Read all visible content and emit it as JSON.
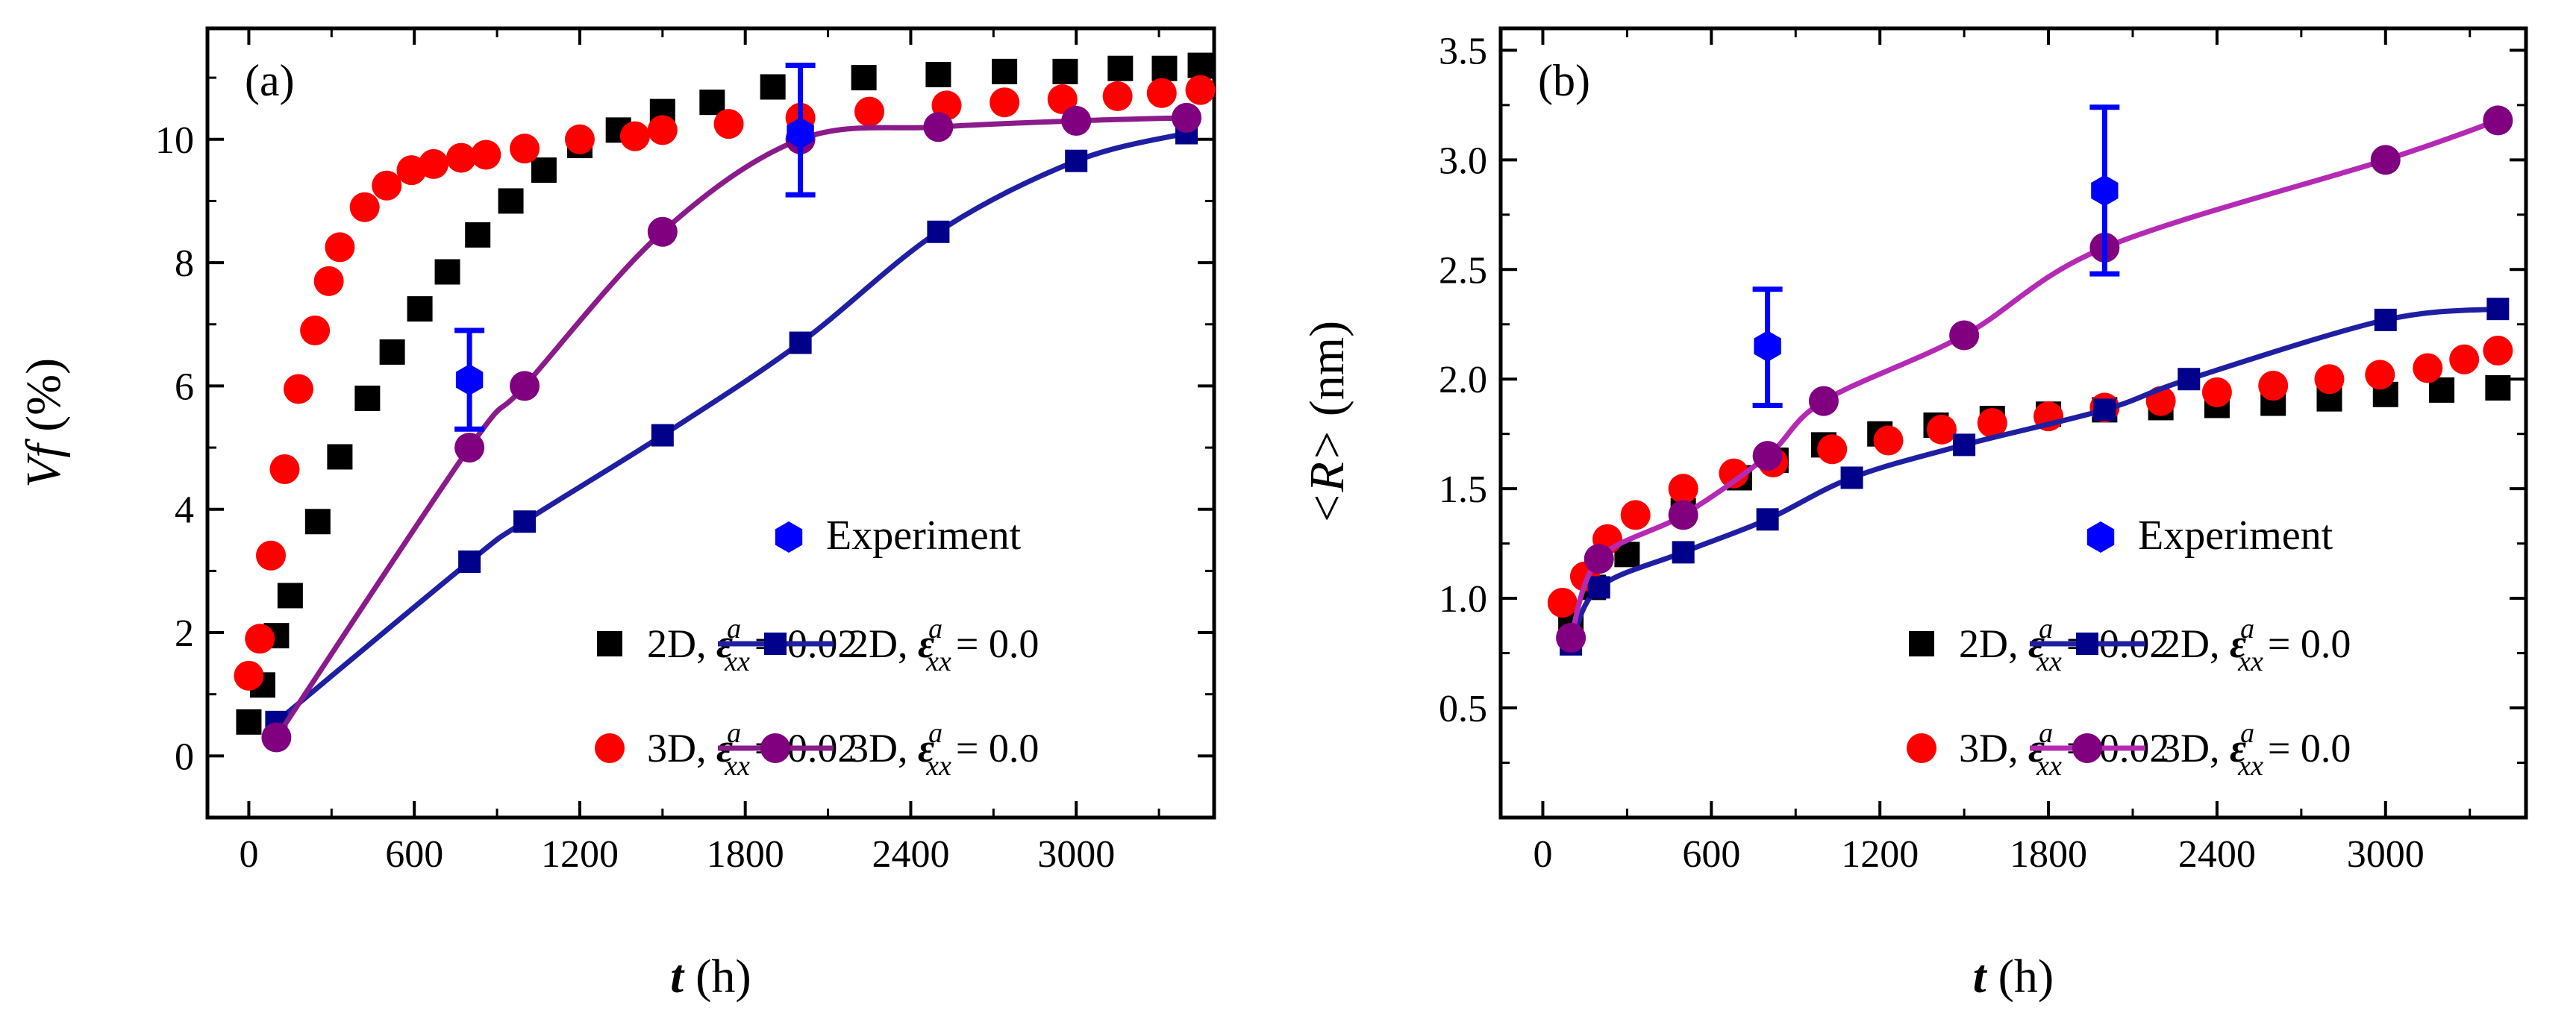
{
  "chart_data": [
    {
      "type": "scatter",
      "panel_label": "(a)",
      "xlabel": "t",
      "xlabel_unit": "(h)",
      "ylabel": "Vf",
      "ylabel_unit": "(%)",
      "xlim": [
        -150,
        3500
      ],
      "ylim": [
        -1,
        11.8
      ],
      "xticks": [
        0,
        600,
        1200,
        1800,
        2400,
        3000
      ],
      "yticks": [
        0,
        2,
        4,
        6,
        8,
        10
      ],
      "legend_position": "bottom-right",
      "legend": {
        "experiment": "Experiment",
        "s2d002": {
          "prefix": "2D, ",
          "sup": "a",
          "sub": "xx",
          "value": "= 0.02"
        },
        "s2d00": {
          "prefix": "2D, ",
          "sup": "a",
          "sub": "xx",
          "value": "= 0.0"
        },
        "s3d002": {
          "prefix": "3D, ",
          "sup": "a",
          "sub": "xx",
          "value": "= 0.02"
        },
        "s3d00": {
          "prefix": "3D, ",
          "sup": "a",
          "sub": "xx",
          "value": "= 0.0"
        }
      },
      "series": [
        {
          "key": "s2d002",
          "name": "2D, ε^a_xx = 0.02",
          "style": "square",
          "color": "#000000",
          "x": [
            0,
            50,
            100,
            150,
            250,
            330,
            430,
            520,
            620,
            720,
            830,
            950,
            1070,
            1200,
            1340,
            1500,
            1680,
            1900,
            2230,
            2500,
            2740,
            2960,
            3160,
            3320,
            3450
          ],
          "y": [
            0.55,
            1.15,
            1.95,
            2.6,
            3.8,
            4.85,
            5.8,
            6.55,
            7.25,
            7.85,
            8.45,
            9.0,
            9.5,
            9.9,
            10.15,
            10.45,
            10.6,
            10.85,
            11.0,
            11.05,
            11.1,
            11.1,
            11.15,
            11.15,
            11.2
          ]
        },
        {
          "key": "s3d002",
          "name": "3D, ε^a_xx = 0.02",
          "style": "circle",
          "color": "#ff0000",
          "x": [
            0,
            40,
            80,
            130,
            180,
            240,
            290,
            330,
            420,
            500,
            590,
            670,
            770,
            860,
            1000,
            1200,
            1400,
            1500,
            1740,
            2000,
            2250,
            2530,
            2740,
            2950,
            3150,
            3310,
            3450
          ],
          "y": [
            1.3,
            1.9,
            3.25,
            4.65,
            5.95,
            6.9,
            7.7,
            8.25,
            8.9,
            9.25,
            9.5,
            9.6,
            9.7,
            9.75,
            9.85,
            10.0,
            10.05,
            10.15,
            10.25,
            10.35,
            10.45,
            10.55,
            10.6,
            10.65,
            10.7,
            10.75,
            10.8
          ]
        },
        {
          "key": "s2d00",
          "name": "2D, ε^a_xx = 0.0",
          "style": "line-square",
          "color": "#00008b",
          "line_color": "#1f1fa3",
          "x": [
            100,
            800,
            1000,
            1500,
            2000,
            2500,
            3000,
            3400
          ],
          "y": [
            0.55,
            3.15,
            3.8,
            5.2,
            6.7,
            8.5,
            9.65,
            10.1
          ]
        },
        {
          "key": "s3d00",
          "name": "3D, ε^a_xx = 0.0",
          "style": "line-circle",
          "color": "#800080",
          "line_color": "#8b1a8b",
          "x": [
            100,
            800,
            1000,
            1500,
            2000,
            2500,
            3000,
            3400
          ],
          "y": [
            0.3,
            5.0,
            6.0,
            8.5,
            10.0,
            10.2,
            10.3,
            10.35
          ]
        },
        {
          "key": "experiment",
          "name": "Experiment",
          "style": "hexagon-errorbar",
          "color": "#0000ff",
          "x": [
            800,
            2000
          ],
          "y": [
            6.1,
            10.1
          ],
          "err_low": [
            5.3,
            9.1
          ],
          "err_high": [
            6.9,
            11.2
          ]
        }
      ]
    },
    {
      "type": "scatter",
      "panel_label": "(b)",
      "xlabel": "t",
      "xlabel_unit": "(h)",
      "ylabel": "<R>",
      "ylabel_unit": "(nm)",
      "xlim": [
        -150,
        3500
      ],
      "ylim": [
        0,
        3.6
      ],
      "xticks": [
        0,
        600,
        1200,
        1800,
        2400,
        3000
      ],
      "yticks": [
        0.5,
        1.0,
        1.5,
        2.0,
        2.5,
        3.0,
        3.5
      ],
      "legend_position": "bottom-right",
      "legend": {
        "experiment": "Experiment",
        "s2d002": {
          "prefix": "2D, ",
          "sup": "a",
          "sub": "xx",
          "value": "= 0.02"
        },
        "s2d00": {
          "prefix": "2D, ",
          "sup": "a",
          "sub": "xx",
          "value": "= 0.0"
        },
        "s3d002": {
          "prefix": "3D, ",
          "sup": "a",
          "sub": "xx",
          "value": "= 0.02"
        },
        "s3d00": {
          "prefix": "3D, ",
          "sup": "a",
          "sub": "xx",
          "value": "= 0.0"
        }
      },
      "series": [
        {
          "key": "s2d002",
          "name": "2D, ε^a_xx = 0.02",
          "style": "square",
          "color": "#000000",
          "x": [
            100,
            180,
            300,
            500,
            700,
            830,
            1000,
            1200,
            1400,
            1600,
            1800,
            2000,
            2200,
            2400,
            2600,
            2800,
            3000,
            3200,
            3400
          ],
          "y": [
            0.88,
            1.05,
            1.2,
            1.4,
            1.55,
            1.63,
            1.7,
            1.75,
            1.79,
            1.82,
            1.84,
            1.86,
            1.87,
            1.88,
            1.89,
            1.91,
            1.93,
            1.95,
            1.96
          ]
        },
        {
          "key": "s3d002",
          "name": "3D, ε^a_xx = 0.02",
          "style": "circle",
          "color": "#ff0000",
          "x": [
            70,
            150,
            230,
            330,
            500,
            680,
            820,
            1030,
            1230,
            1420,
            1600,
            1800,
            2000,
            2200,
            2400,
            2600,
            2800,
            2980,
            3150,
            3280,
            3400
          ],
          "y": [
            0.98,
            1.1,
            1.27,
            1.38,
            1.5,
            1.57,
            1.62,
            1.68,
            1.72,
            1.77,
            1.8,
            1.83,
            1.87,
            1.9,
            1.94,
            1.97,
            2.0,
            2.02,
            2.05,
            2.09,
            2.13
          ]
        },
        {
          "key": "s2d00",
          "name": "2D, ε^a_xx = 0.0",
          "style": "line-square",
          "color": "#00008b",
          "line_color": "#1f1fa3",
          "x": [
            100,
            200,
            500,
            800,
            1100,
            1500,
            2000,
            2300,
            3000,
            3400
          ],
          "y": [
            0.79,
            1.05,
            1.21,
            1.36,
            1.55,
            1.7,
            1.86,
            2.0,
            2.27,
            2.32
          ]
        },
        {
          "key": "s3d00",
          "name": "3D, ε^a_xx = 0.0",
          "style": "line-circle",
          "color": "#800080",
          "line_color": "#b52ab5",
          "x": [
            100,
            200,
            500,
            800,
            1000,
            1500,
            2000,
            3000,
            3400
          ],
          "y": [
            0.82,
            1.18,
            1.38,
            1.65,
            1.9,
            2.2,
            2.6,
            3.0,
            3.18
          ]
        },
        {
          "key": "experiment",
          "name": "Experiment",
          "style": "hexagon-errorbar",
          "color": "#0000ff",
          "x": [
            800,
            2000
          ],
          "y": [
            2.15,
            2.86
          ],
          "err_low": [
            1.88,
            2.48
          ],
          "err_high": [
            2.41,
            3.24
          ]
        }
      ]
    }
  ]
}
